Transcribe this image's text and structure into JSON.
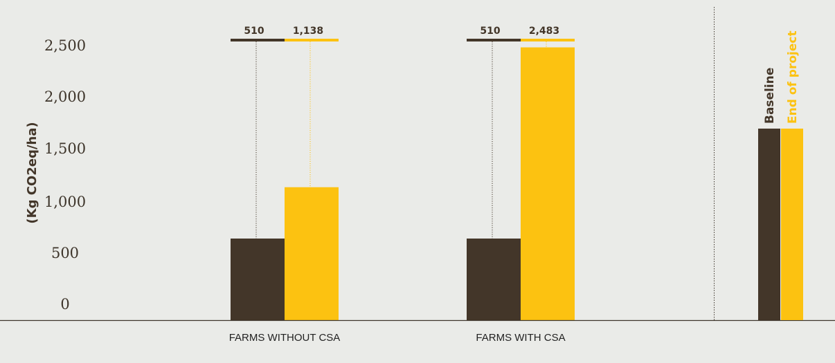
{
  "chart_data": {
    "type": "bar",
    "xlabel": "",
    "ylabel": "(Kg CO2eq/ha)",
    "ylim": [
      0,
      2500
    ],
    "yticks": [
      0,
      500,
      1000,
      1500,
      2000,
      2500
    ],
    "ytick_labels": [
      "0",
      "500",
      "1,000",
      "1,500",
      "2,000",
      "2,500"
    ],
    "categories": [
      "FARMS WITHOUT CSA",
      "FARMS WITH CSA"
    ],
    "series": [
      {
        "name": "Baseline",
        "values": [
          510,
          510
        ],
        "value_labels": [
          "510",
          "510"
        ],
        "color": "#433629"
      },
      {
        "name": "End of project",
        "values": [
          1138,
          2483
        ],
        "value_labels": [
          "1,138",
          "2,483"
        ],
        "color": "#fcc211"
      }
    ],
    "legend_position": "right",
    "grid": false
  },
  "colors": {
    "background": "#eaebe8",
    "baseline": "#433629",
    "end_of_project": "#fcc211"
  }
}
